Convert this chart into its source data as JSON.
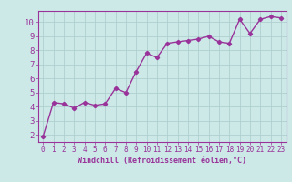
{
  "x": [
    0,
    1,
    2,
    3,
    4,
    5,
    6,
    7,
    8,
    9,
    10,
    11,
    12,
    13,
    14,
    15,
    16,
    17,
    18,
    19,
    20,
    21,
    22,
    23
  ],
  "y": [
    1.9,
    4.3,
    4.2,
    3.9,
    4.3,
    4.1,
    4.2,
    5.3,
    5.0,
    6.5,
    7.8,
    7.5,
    8.5,
    8.6,
    8.7,
    8.8,
    9.0,
    8.6,
    8.5,
    10.2,
    9.2,
    10.2,
    10.4,
    10.3
  ],
  "line_color": "#993399",
  "marker": "D",
  "marker_size": 2.2,
  "linewidth": 1.0,
  "xlabel": "Windchill (Refroidissement éolien,°C)",
  "xlabel_fontsize": 6,
  "ylabel_ticks": [
    2,
    3,
    4,
    5,
    6,
    7,
    8,
    9,
    10
  ],
  "xtick_labels": [
    "0",
    "1",
    "2",
    "3",
    "4",
    "5",
    "6",
    "7",
    "8",
    "9",
    "10",
    "11",
    "12",
    "13",
    "14",
    "15",
    "16",
    "17",
    "18",
    "19",
    "20",
    "21",
    "22",
    "23"
  ],
  "ylim": [
    1.5,
    10.8
  ],
  "xlim": [
    -0.5,
    23.5
  ],
  "background_color": "#cce9e8",
  "grid_color": "#aacccc",
  "tick_color": "#993399",
  "label_color": "#993399",
  "font_family": "monospace",
  "tick_fontsize": 5.5,
  "ytick_fontsize": 6.5
}
